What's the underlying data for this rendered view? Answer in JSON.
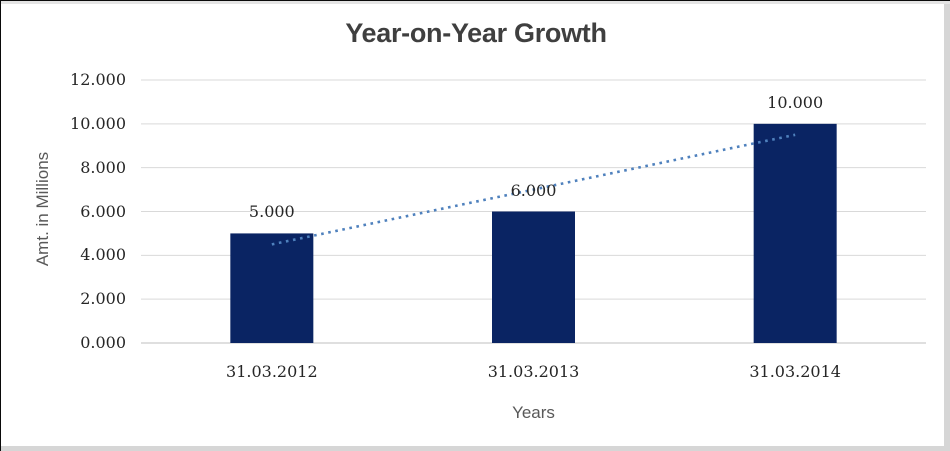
{
  "chart_data": {
    "type": "bar",
    "title": "Year-on-Year Growth",
    "xlabel": "Years",
    "ylabel": "Amt. in Millions",
    "categories": [
      "31.03.2012",
      "31.03.2013",
      "31.03.2014"
    ],
    "values": [
      5,
      6,
      10
    ],
    "data_labels": [
      "5.000",
      "6.000",
      "10.000"
    ],
    "ylim": [
      0,
      12
    ],
    "yticks": [
      {
        "value": 0,
        "label": "0.000"
      },
      {
        "value": 2,
        "label": "2.000"
      },
      {
        "value": 4,
        "label": "4.000"
      },
      {
        "value": 6,
        "label": "6.000"
      },
      {
        "value": 8,
        "label": "8.000"
      },
      {
        "value": 10,
        "label": "10.000"
      },
      {
        "value": 12,
        "label": "12.000"
      }
    ],
    "grid": true,
    "legend": "none",
    "trendline": {
      "type": "linear",
      "style": "dotted",
      "color": "#4F81BD",
      "points": [
        {
          "category_index": 0,
          "value": 4.5
        },
        {
          "category_index": 2,
          "value": 9.5
        }
      ]
    },
    "colors": {
      "bar": "#0A2463",
      "gridline": "#D9D9D9",
      "axis_line": "#BFBFBF",
      "title_text": "#3F3F3F",
      "tick_text": "#262626",
      "axis_title_text": "#595959",
      "background": "#FFFFFF"
    }
  }
}
